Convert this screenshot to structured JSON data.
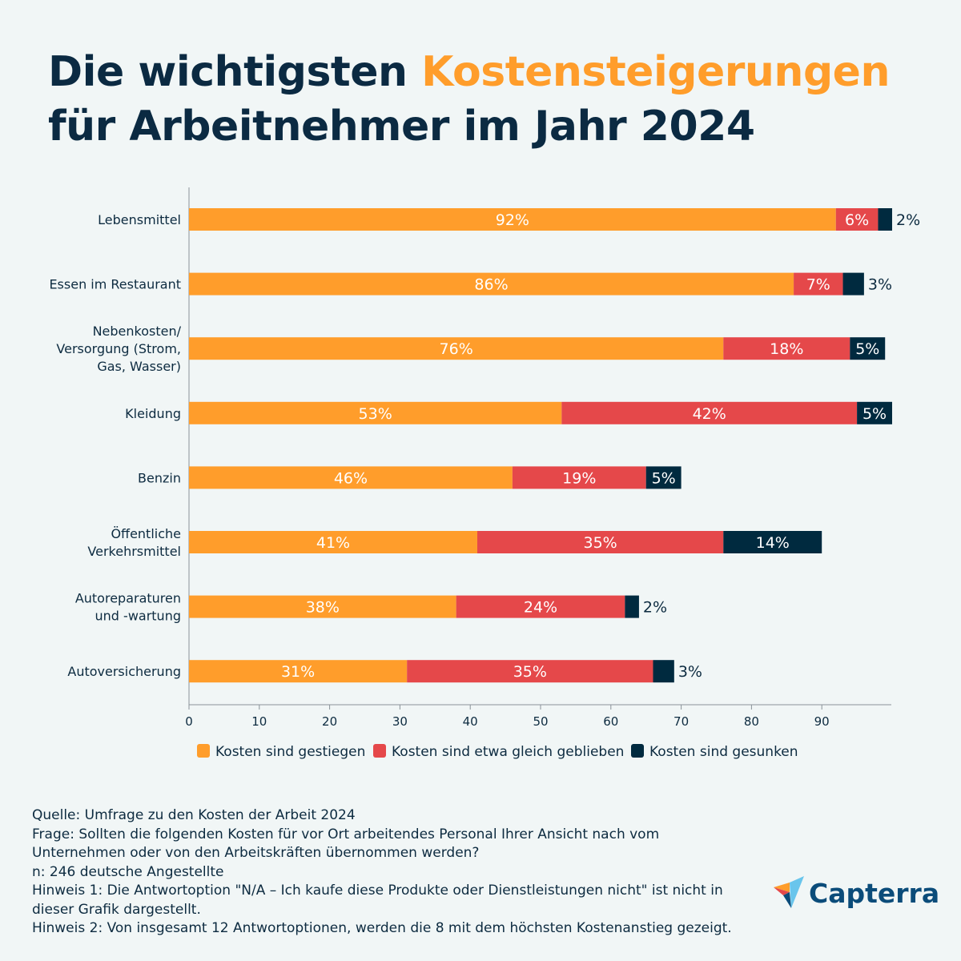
{
  "title": {
    "part1": "Die wichtigsten ",
    "highlight": "Kostensteigerungen",
    "part2": "für Arbeitnehmer im Jahr 2024"
  },
  "colors": {
    "gestiegen": "#ff9d2b",
    "gleich": "#e5484a",
    "gesunken": "#002a3f",
    "background": "#f1f6f6"
  },
  "chart_data": {
    "type": "bar",
    "orientation": "horizontal",
    "stacked": true,
    "categories": [
      "Lebensmittel",
      "Essen im Restaurant",
      "Nebenkosten/ Versorgung (Strom, Gas, Wasser)",
      "Kleidung",
      "Benzin",
      "Öffentliche Verkehrsmittel",
      "Autoreparaturen und -wartung",
      "Autoversicherung"
    ],
    "category_lines": [
      [
        "Lebensmittel"
      ],
      [
        "Essen im Restaurant"
      ],
      [
        "Nebenkosten/",
        "Versorgung (Strom,",
        "Gas, Wasser)"
      ],
      [
        "Kleidung"
      ],
      [
        "Benzin"
      ],
      [
        "Öffentliche",
        "Verkehrsmittel"
      ],
      [
        "Autoreparaturen",
        "und -wartung"
      ],
      [
        "Autoversicherung"
      ]
    ],
    "series": [
      {
        "name": "Kosten sind gestiegen",
        "values": [
          92,
          86,
          76,
          53,
          46,
          41,
          38,
          31
        ]
      },
      {
        "name": "Kosten sind etwa gleich geblieben",
        "values": [
          6,
          7,
          18,
          42,
          19,
          35,
          24,
          35
        ]
      },
      {
        "name": "Kosten sind gesunken",
        "values": [
          2,
          3,
          5,
          5,
          5,
          14,
          2,
          3
        ]
      }
    ],
    "xlim": [
      0,
      100
    ],
    "xticks": [
      0,
      10,
      20,
      30,
      40,
      50,
      60,
      70,
      80,
      90
    ],
    "value_suffix": "%",
    "legend": "bottom",
    "grid": false
  },
  "footer": {
    "lines": [
      "Quelle: Umfrage zu den Kosten der Arbeit 2024",
      "Frage: Sollten die folgenden Kosten für vor Ort arbeitendes Personal Ihrer Ansicht nach vom Unternehmen oder von den Arbeitskräften übernommen werden?",
      "n: 246 deutsche Angestellte",
      "Hinweis 1: Die Antwortoption \"N/A – Ich kaufe diese Produkte oder Dienstleistungen nicht\" ist nicht in dieser Grafik dargestellt.",
      "Hinweis 2: Von insgesamt 12 Antwortoptionen, werden die 8 mit dem höchsten Kostenanstieg gezeigt."
    ]
  },
  "logo": {
    "text": "Capterra"
  }
}
